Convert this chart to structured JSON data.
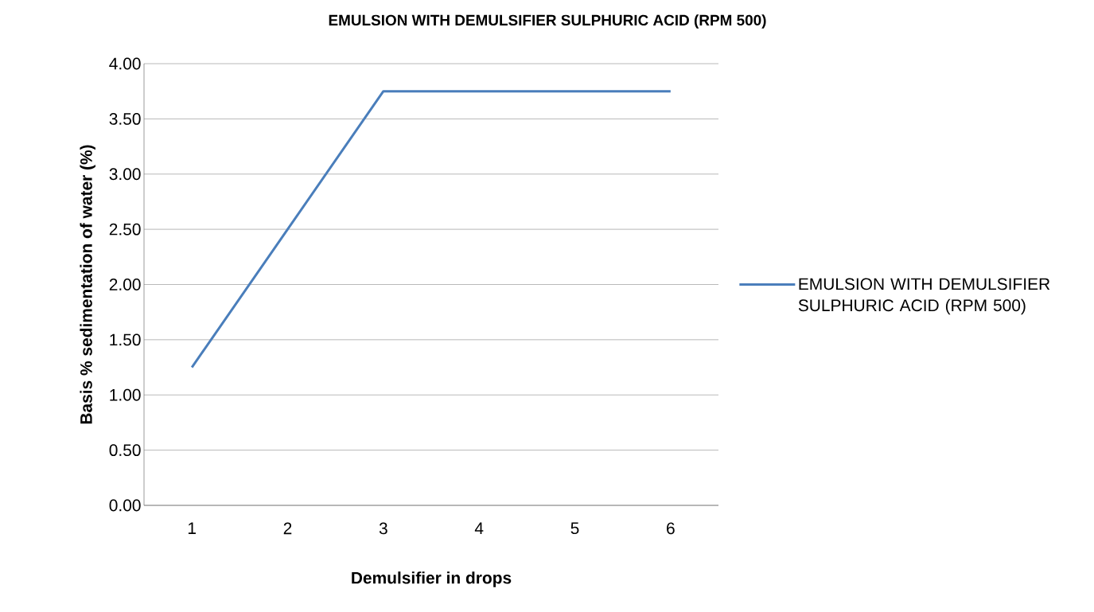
{
  "chart_data": {
    "type": "line",
    "title": "EMULSION WITH DEMULSIFIER SULPHURIC ACID (RPM 500)",
    "xlabel": "Demulsifier in drops",
    "ylabel": "Basis % sedimentation of water   (%)",
    "categories": [
      "1",
      "2",
      "3",
      "4",
      "5",
      "6"
    ],
    "series": [
      {
        "name": "EMULSION WITH DEMULSIFIER SULPHURIC ACID (RPM 500)",
        "color": "#4a7ebb",
        "values": [
          1.25,
          2.5,
          3.75,
          3.75,
          3.75,
          3.75
        ]
      }
    ],
    "ylim": [
      0,
      4
    ],
    "yticks": [
      {
        "value": 0,
        "label": "0.00"
      },
      {
        "value": 0.5,
        "label": "0.50"
      },
      {
        "value": 1,
        "label": "1.00"
      },
      {
        "value": 1.5,
        "label": "1.50"
      },
      {
        "value": 2,
        "label": "2.00"
      },
      {
        "value": 2.5,
        "label": "2.50"
      },
      {
        "value": 3,
        "label": "3.00"
      },
      {
        "value": 3.5,
        "label": "3.50"
      },
      {
        "value": 4,
        "label": "4.00"
      }
    ],
    "grid": "y",
    "legend": "right",
    "line_style": "solid"
  }
}
